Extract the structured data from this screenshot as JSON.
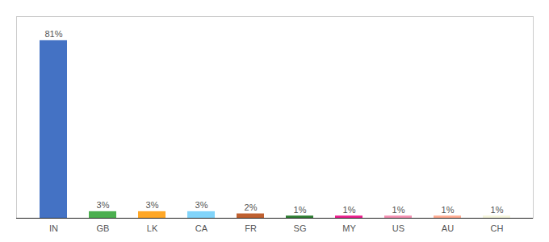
{
  "chart_data": {
    "type": "bar",
    "categories": [
      "IN",
      "GB",
      "LK",
      "CA",
      "FR",
      "SG",
      "MY",
      "US",
      "AU",
      "CH"
    ],
    "values": [
      81,
      3,
      3,
      3,
      2,
      1,
      1,
      1,
      1,
      1
    ],
    "value_labels": [
      "81%",
      "3%",
      "3%",
      "3%",
      "2%",
      "1%",
      "1%",
      "1%",
      "1%",
      "1%"
    ],
    "colors": [
      "#4472C4",
      "#4CAF50",
      "#FFA726",
      "#81D4FA",
      "#BF6030",
      "#2E7D32",
      "#E91E8C",
      "#F48FB1",
      "#FFAB91",
      "#F5F5DC"
    ],
    "ylim": [
      0,
      92
    ],
    "data_labels": true,
    "tick_labels": "x",
    "grid": false
  }
}
